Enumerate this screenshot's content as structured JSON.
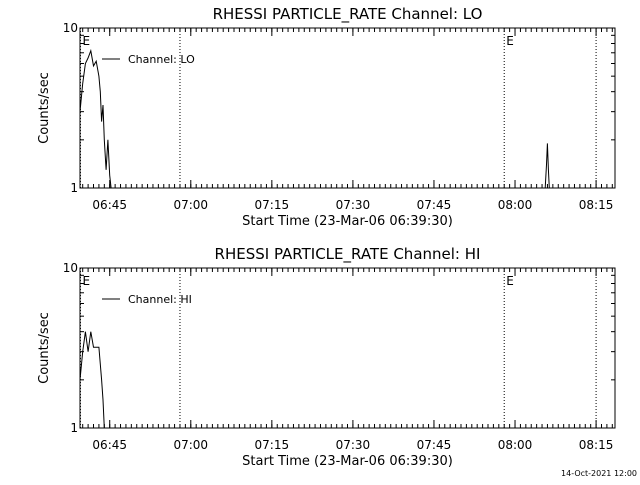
{
  "chart_data": [
    {
      "type": "line",
      "title": "RHESSI PARTICLE_RATE Channel: LO",
      "xlabel": "Start Time (23-Mar-06 06:39:30)",
      "ylabel": "Counts/sec",
      "yscale": "log",
      "ylim": [
        1,
        10
      ],
      "xlim": [
        "06:39:30",
        "08:18:30"
      ],
      "x_ticks": [
        "06:45",
        "07:00",
        "07:15",
        "07:30",
        "07:45",
        "08:00",
        "08:15"
      ],
      "y_tick_labels": [
        "10",
        "1"
      ],
      "grid": false,
      "legend": "top-left",
      "series": [
        {
          "name": "Channel: LO",
          "x": [
            "06:39:30",
            "06:40:00",
            "06:40:30",
            "06:41:00",
            "06:41:30",
            "06:42:00",
            "06:42:30",
            "06:43:00",
            "06:43:15",
            "06:43:30",
            "06:43:45",
            "06:44:00",
            "06:44:20",
            "06:44:40",
            "06:45:00",
            "06:45:15",
            "08:05:35",
            "08:05:50",
            "08:06:00",
            "08:06:10",
            "08:06:20"
          ],
          "y": [
            3.0,
            4.5,
            6.0,
            6.5,
            7.2,
            5.8,
            6.2,
            5.0,
            4.0,
            2.6,
            3.3,
            2.0,
            1.3,
            2.0,
            1.2,
            1.0,
            1.0,
            1.4,
            1.9,
            1.3,
            1.0
          ]
        }
      ],
      "markers": [
        {
          "time": "06:39:35",
          "label": "E"
        },
        {
          "time": "06:58:00",
          "label": ""
        },
        {
          "time": "07:58:00",
          "label": "E"
        },
        {
          "time": "08:15:00",
          "label": ""
        }
      ]
    },
    {
      "type": "line",
      "title": "RHESSI PARTICLE_RATE Channel: HI",
      "xlabel": "Start Time (23-Mar-06 06:39:30)",
      "ylabel": "Counts/sec",
      "yscale": "log",
      "ylim": [
        1,
        10
      ],
      "xlim": [
        "06:39:30",
        "08:18:30"
      ],
      "x_ticks": [
        "06:45",
        "07:00",
        "07:15",
        "07:30",
        "07:45",
        "08:00",
        "08:15"
      ],
      "y_tick_labels": [
        "10",
        "1"
      ],
      "grid": false,
      "legend": "top-left",
      "series": [
        {
          "name": "Channel: HI",
          "x": [
            "06:39:30",
            "06:40:00",
            "06:40:30",
            "06:41:00",
            "06:41:30",
            "06:42:00",
            "06:42:30",
            "06:43:00",
            "06:43:30",
            "06:43:45",
            "06:44:00"
          ],
          "y": [
            2.0,
            3.0,
            4.0,
            3.0,
            4.0,
            3.2,
            3.2,
            3.2,
            2.0,
            1.5,
            1.0
          ]
        }
      ],
      "markers": [
        {
          "time": "06:39:35",
          "label": "E"
        },
        {
          "time": "06:58:00",
          "label": ""
        },
        {
          "time": "07:58:00",
          "label": "E"
        },
        {
          "time": "08:15:00",
          "label": ""
        }
      ]
    }
  ],
  "footer": {
    "timestamp": "14-Oct-2021 12:00"
  }
}
